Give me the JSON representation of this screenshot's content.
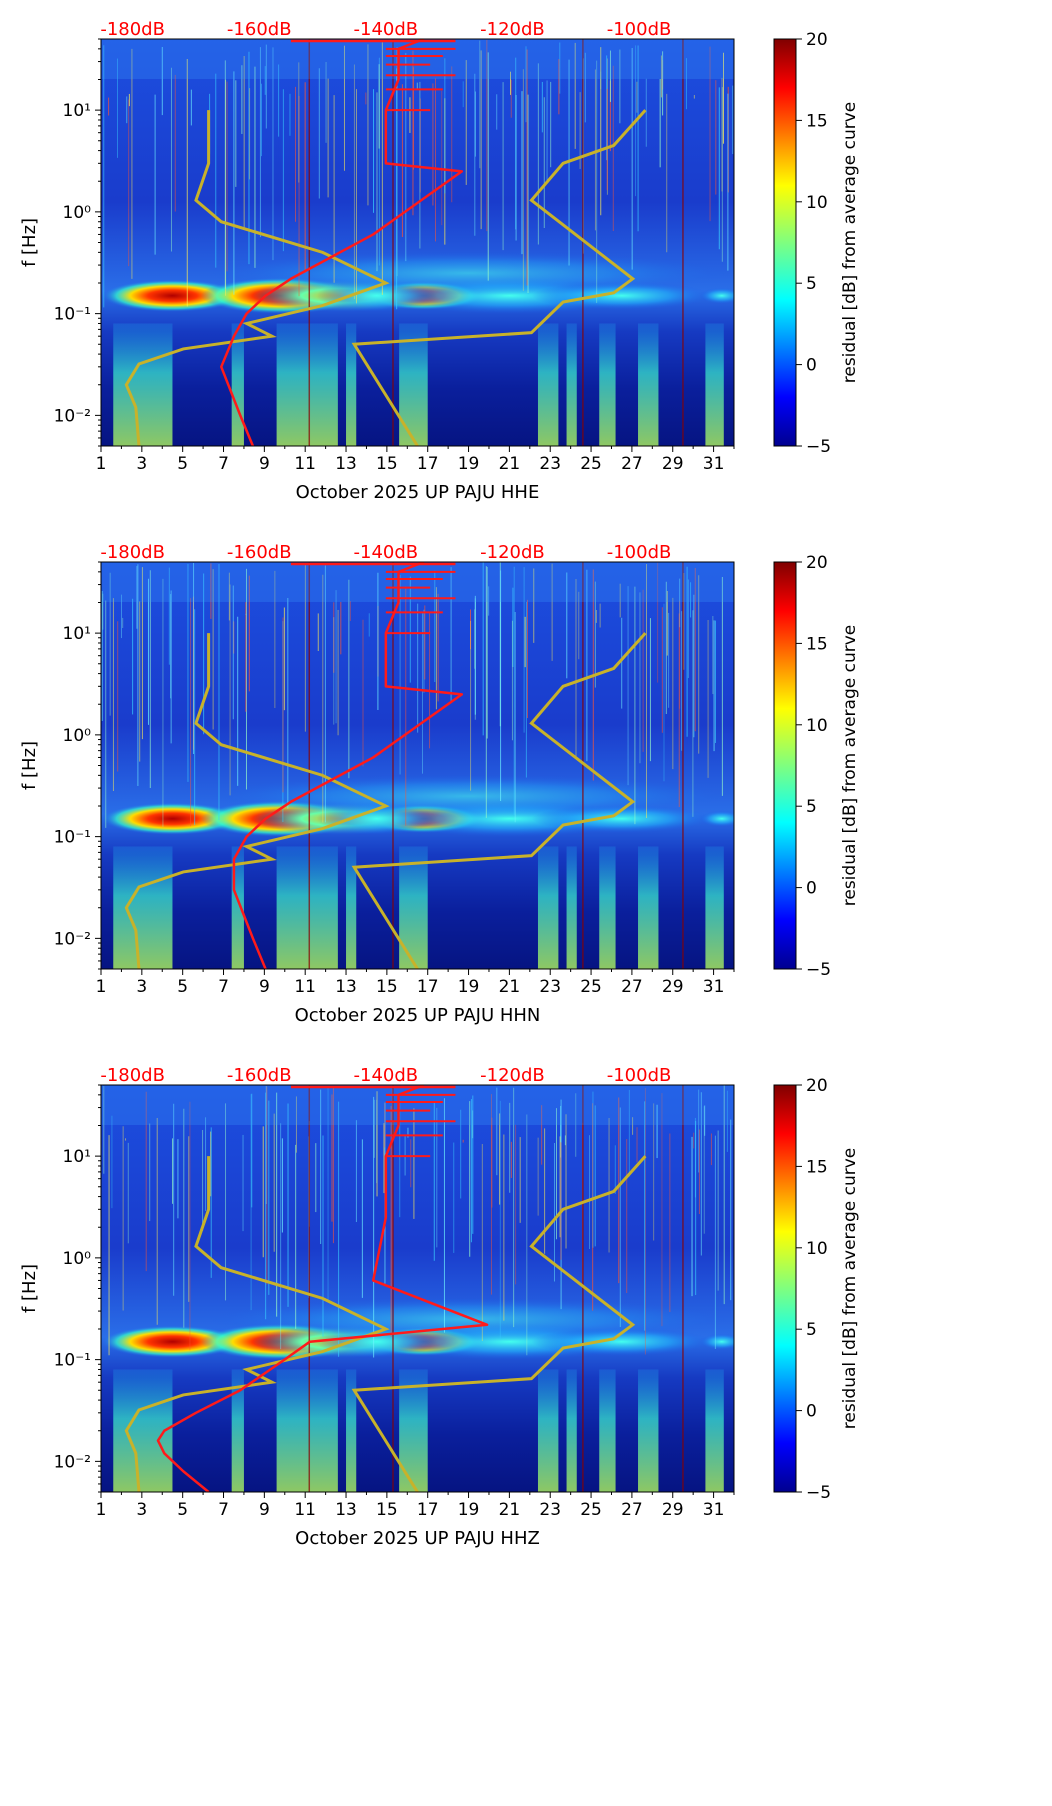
{
  "chart_data": [
    {
      "type": "heatmap",
      "panel": "HHE",
      "xlabel": "October 2025 UP PAJU  HHE",
      "ylabel": "f [Hz]",
      "x_ticks": [
        "1",
        "3",
        "5",
        "7",
        "9",
        "11",
        "13",
        "15",
        "17",
        "19",
        "21",
        "23",
        "25",
        "27",
        "29",
        "31"
      ],
      "x_range": [
        1,
        32
      ],
      "y_scale": "log",
      "y_range": [
        0.005,
        50
      ],
      "y_ticks": [
        "10⁻²",
        "10⁻¹",
        "10⁰",
        "10¹"
      ],
      "top_db_labels": [
        "-180dB",
        "-160dB",
        "-140dB",
        "-120dB",
        "-100dB"
      ],
      "colorbar": {
        "label": "residual [dB] from average curve",
        "range": [
          -5,
          20
        ],
        "ticks": [
          "−5",
          "0",
          "5",
          "10",
          "15",
          "20"
        ]
      },
      "noise_model_curve": {
        "freq": [
          0.005,
          0.01,
          0.03,
          0.06,
          0.1,
          0.15,
          0.22,
          0.6,
          2.5,
          3,
          5,
          10,
          20,
          40,
          50
        ],
        "db": [
          -161,
          -163,
          -166,
          -164,
          -162,
          -159,
          -155,
          -142,
          -128,
          -140,
          -140,
          -140,
          -138,
          -138,
          -134
        ]
      },
      "reference_low_curve": {
        "freq": [
          0.005,
          0.012,
          0.02,
          0.032,
          0.045,
          0.06,
          0.08,
          0.12,
          0.2,
          0.4,
          0.8,
          1.3,
          3,
          10
        ],
        "db": [
          -179,
          -179.5,
          -181,
          -179,
          -172,
          -158,
          -162,
          -150,
          -140,
          -150,
          -166,
          -170,
          -168,
          -168
        ]
      },
      "reference_high_curve": {
        "freq": [
          0.005,
          0.05,
          0.065,
          0.13,
          0.16,
          0.22,
          1.3,
          3,
          4.5,
          10
        ],
        "db": [
          -135,
          -145,
          -117,
          -112,
          -104,
          -101,
          -117,
          -112,
          -104,
          -99
        ]
      }
    },
    {
      "type": "heatmap",
      "panel": "HHN",
      "xlabel": "October 2025 UP PAJU  HHN",
      "ylabel": "f [Hz]",
      "x_ticks": [
        "1",
        "3",
        "5",
        "7",
        "9",
        "11",
        "13",
        "15",
        "17",
        "19",
        "21",
        "23",
        "25",
        "27",
        "29",
        "31"
      ],
      "x_range": [
        1,
        32
      ],
      "y_scale": "log",
      "y_range": [
        0.005,
        50
      ],
      "y_ticks": [
        "10⁻²",
        "10⁻¹",
        "10⁰",
        "10¹"
      ],
      "top_db_labels": [
        "-180dB",
        "-160dB",
        "-140dB",
        "-120dB",
        "-100dB"
      ],
      "colorbar": {
        "label": "residual [dB] from average curve",
        "range": [
          -5,
          20
        ],
        "ticks": [
          "−5",
          "0",
          "5",
          "10",
          "15",
          "20"
        ]
      },
      "noise_model_curve": {
        "freq": [
          0.005,
          0.01,
          0.03,
          0.06,
          0.1,
          0.15,
          0.22,
          0.6,
          2.5,
          3,
          5,
          10,
          20,
          40,
          50
        ],
        "db": [
          -159,
          -161,
          -164,
          -164,
          -162,
          -159,
          -155,
          -142,
          -128,
          -140,
          -140,
          -140,
          -138,
          -138,
          -134
        ]
      },
      "reference_low_curve": {
        "freq": [
          0.005,
          0.012,
          0.02,
          0.032,
          0.045,
          0.06,
          0.08,
          0.12,
          0.2,
          0.4,
          0.8,
          1.3,
          3,
          10
        ],
        "db": [
          -179,
          -179.5,
          -181,
          -179,
          -172,
          -158,
          -162,
          -150,
          -140,
          -150,
          -166,
          -170,
          -168,
          -168
        ]
      },
      "reference_high_curve": {
        "freq": [
          0.005,
          0.05,
          0.065,
          0.13,
          0.16,
          0.22,
          1.3,
          3,
          4.5,
          10
        ],
        "db": [
          -135,
          -145,
          -117,
          -112,
          -104,
          -101,
          -117,
          -112,
          -104,
          -99
        ]
      }
    },
    {
      "type": "heatmap",
      "panel": "HHZ",
      "xlabel": "October 2025 UP PAJU  HHZ",
      "ylabel": "f [Hz]",
      "x_ticks": [
        "1",
        "3",
        "5",
        "7",
        "9",
        "11",
        "13",
        "15",
        "17",
        "19",
        "21",
        "23",
        "25",
        "27",
        "29",
        "31"
      ],
      "x_range": [
        1,
        32
      ],
      "y_scale": "log",
      "y_range": [
        0.005,
        50
      ],
      "y_ticks": [
        "10⁻²",
        "10⁻¹",
        "10⁰",
        "10¹"
      ],
      "top_db_labels": [
        "-180dB",
        "-160dB",
        "-140dB",
        "-120dB",
        "-100dB"
      ],
      "colorbar": {
        "label": "residual [dB] from average curve",
        "range": [
          -5,
          20
        ],
        "ticks": [
          "−5",
          "0",
          "5",
          "10",
          "15",
          "20"
        ]
      },
      "noise_model_curve": {
        "freq": [
          0.005,
          0.008,
          0.012,
          0.016,
          0.02,
          0.03,
          0.05,
          0.1,
          0.15,
          0.22,
          0.6,
          2.5,
          3,
          5,
          10,
          20,
          40,
          50
        ],
        "db": [
          -168,
          -172,
          -175,
          -176,
          -175,
          -170,
          -163,
          -156,
          -152,
          -124,
          -142,
          -140,
          -140,
          -140,
          -140,
          -138,
          -138,
          -134
        ]
      },
      "reference_low_curve": {
        "freq": [
          0.005,
          0.012,
          0.02,
          0.032,
          0.045,
          0.06,
          0.08,
          0.12,
          0.2,
          0.4,
          0.8,
          1.3,
          3,
          10
        ],
        "db": [
          -179,
          -179.5,
          -181,
          -179,
          -172,
          -158,
          -162,
          -150,
          -140,
          -150,
          -166,
          -170,
          -168,
          -168
        ]
      },
      "reference_high_curve": {
        "freq": [
          0.005,
          0.05,
          0.065,
          0.13,
          0.16,
          0.22,
          1.3,
          3,
          4.5,
          10
        ],
        "db": [
          -135,
          -145,
          -117,
          -112,
          -104,
          -101,
          -117,
          -112,
          -104,
          -99
        ]
      }
    }
  ],
  "colors": {
    "noise_model_curve": "#ff1a1a",
    "reference_curves": "#c8b22a",
    "db_labels": "#ff0000",
    "background_field": "#1533c8"
  }
}
